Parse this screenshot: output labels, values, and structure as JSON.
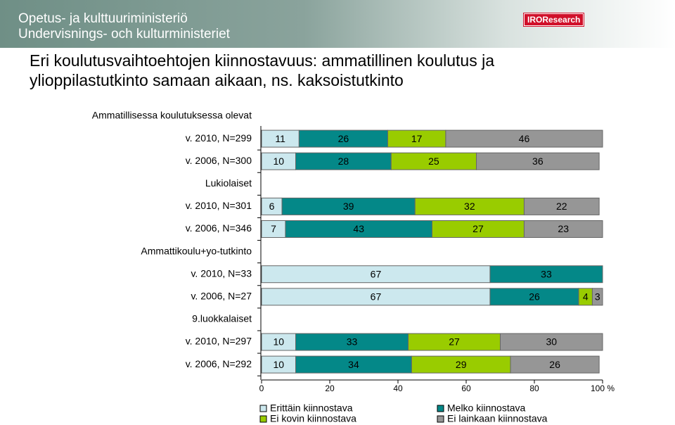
{
  "header": {
    "org_fi": "Opetus- ja kulttuuriministeriö",
    "org_sv": "Undervisnings- och kulturministeriet",
    "logo": "IROResearch"
  },
  "chart_data": {
    "type": "stacked-bar-horizontal",
    "title": "Eri koulutusvaihtoehtojen kiinnostavuus: ammatillinen koulutus ja ylioppilastutkinto samaan aikaan, ns. kaksoistutkinto",
    "categories": [
      "Ammatillisessa koulutuksessa olevat",
      "v. 2010, N=299",
      "v. 2006, N=300",
      "Lukiolaiset",
      "v. 2010, N=301",
      "v. 2006, N=346",
      "Ammattikoulu+yo-tutkinto",
      "v. 2010, N=33",
      "v. 2006, N=27",
      "9.luokkalaiset",
      "v. 2010, N=297",
      "v. 2006, N=292"
    ],
    "series": [
      {
        "name": "Erittäin kiinnostava",
        "color": "#cce8ee",
        "values": [
          null,
          11,
          10,
          null,
          6,
          7,
          null,
          67,
          67,
          null,
          10,
          10
        ]
      },
      {
        "name": "Melko kiinnostava",
        "color": "#048888",
        "values": [
          null,
          26,
          28,
          null,
          39,
          43,
          null,
          33,
          26,
          null,
          33,
          34
        ]
      },
      {
        "name": "Ei kovin kiinnostava",
        "color": "#99cc00",
        "values": [
          null,
          17,
          25,
          null,
          32,
          27,
          null,
          null,
          4,
          null,
          27,
          29
        ]
      },
      {
        "name": "Ei lainkaan kiinnostava",
        "color": "#969696",
        "values": [
          null,
          46,
          36,
          null,
          22,
          23,
          null,
          null,
          3,
          null,
          30,
          26
        ]
      }
    ],
    "xlim": [
      0,
      100
    ],
    "xticks": [
      0,
      20,
      40,
      60,
      80,
      {
        "value": 100,
        "label": "100 %"
      }
    ]
  }
}
